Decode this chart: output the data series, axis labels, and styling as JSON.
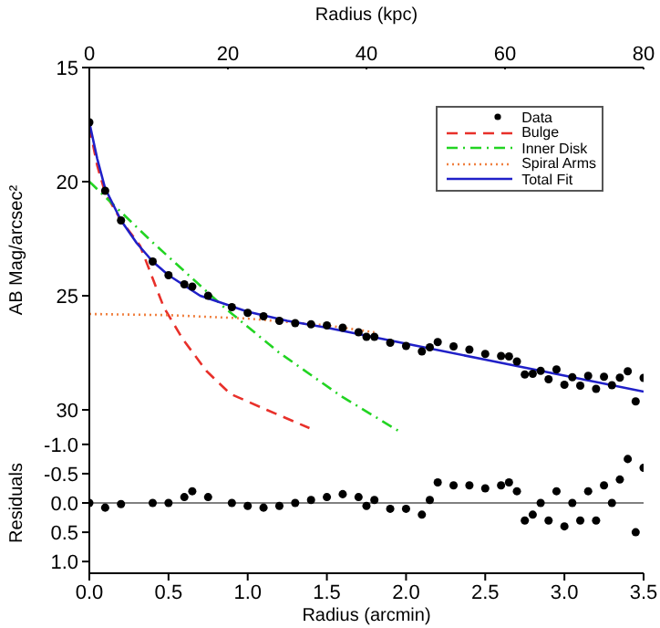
{
  "chart_data": [
    {
      "type": "line",
      "x2label": "Radius (kpc)",
      "ylabel": "AB Mag/arcsec²",
      "xlim": [
        0,
        3.5
      ],
      "xticks": [
        {
          "value": 0,
          "label": null
        },
        {
          "value": 0.5,
          "label": null
        },
        {
          "value": 1,
          "label": null
        },
        {
          "value": 1.5,
          "label": null
        },
        {
          "value": 2,
          "label": null
        },
        {
          "value": 2.5,
          "label": null
        },
        {
          "value": 3,
          "label": null
        },
        {
          "value": 3.5,
          "label": null
        }
      ],
      "x2lim": [
        0,
        80
      ],
      "x2ticks": [
        0,
        20,
        40,
        60,
        80
      ],
      "ylim": [
        31,
        15
      ],
      "yticks": [
        15,
        20,
        25,
        30
      ],
      "tick_labels": "y",
      "legend": "top right",
      "series": [
        {
          "name": "Data",
          "type": "scatter",
          "marker": "circle",
          "color": "#000000",
          "x": [
            0,
            0.1,
            0.2,
            0.4,
            0.5,
            0.6,
            0.65,
            0.75,
            0.9,
            1.0,
            1.1,
            1.2,
            1.3,
            1.4,
            1.5,
            1.6,
            1.7,
            1.75,
            1.8,
            1.9,
            2.0,
            2.1,
            2.15,
            2.2,
            2.3,
            2.4,
            2.5,
            2.6,
            2.65,
            2.7,
            2.75,
            2.8,
            2.85,
            2.9,
            2.95,
            3.0,
            3.05,
            3.1,
            3.15,
            3.2,
            3.25,
            3.3,
            3.35,
            3.4,
            3.45,
            3.5
          ],
          "values": [
            17.4,
            20.4,
            21.7,
            23.5,
            24.1,
            24.5,
            24.6,
            25.0,
            25.5,
            25.75,
            25.9,
            26.1,
            26.2,
            26.25,
            26.3,
            26.4,
            26.6,
            26.8,
            26.8,
            27.06,
            27.2,
            27.44,
            27.26,
            27.03,
            27.22,
            27.36,
            27.55,
            27.64,
            27.66,
            27.88,
            28.45,
            28.42,
            28.29,
            28.66,
            28.23,
            28.9,
            28.57,
            28.94,
            28.51,
            29.08,
            28.55,
            28.92,
            28.59,
            28.31,
            29.63,
            28.6
          ]
        },
        {
          "name": "Bulge",
          "marker": "none",
          "line_style": "dashed",
          "color": "#e8302a",
          "x": [
            0,
            0.05,
            0.1,
            0.2,
            0.32,
            0.47,
            0.59,
            0.74,
            0.89,
            1.12,
            1.39
          ],
          "values": [
            17.6,
            19.3,
            20.5,
            21.7,
            22.8,
            25.5,
            26.9,
            28.3,
            29.3,
            30.0,
            30.8
          ]
        },
        {
          "name": "Inner Disk",
          "marker": "none",
          "line_style": "dashdot",
          "color": "#22d422",
          "x": [
            0,
            0.39,
            0.85,
            1.2,
            1.59,
            1.97
          ],
          "values": [
            20.0,
            22.6,
            25.5,
            27.5,
            29.4,
            31.0
          ]
        },
        {
          "name": "Spiral Arms",
          "marker": "none",
          "line_style": "dotted",
          "color": "#f08040",
          "x": [
            0,
            0.5,
            1.0,
            1.5,
            1.8
          ],
          "values": [
            25.8,
            25.85,
            26.0,
            26.3,
            26.6
          ]
        },
        {
          "name": "Total Fit",
          "marker": "none",
          "line_style": "solid",
          "color": "#2020c8",
          "x": [
            0,
            0.05,
            0.1,
            0.2,
            0.3,
            0.4,
            0.5,
            0.7,
            1.0,
            1.25,
            1.5,
            2.0,
            2.5,
            3.0,
            3.5
          ],
          "values": [
            17.4,
            19.0,
            20.3,
            21.7,
            22.7,
            23.5,
            24.1,
            25.0,
            25.7,
            26.1,
            26.4,
            27.1,
            27.8,
            28.5,
            29.2
          ]
        }
      ]
    },
    {
      "type": "scatter",
      "xlabel": "Radius (arcmin)",
      "ylabel": "Residuals",
      "xlim": [
        0,
        3.5
      ],
      "xticks": [
        {
          "value": 0,
          "label": "0.0"
        },
        {
          "value": 0.5,
          "label": "0.5"
        },
        {
          "value": 1,
          "label": "1.0"
        },
        {
          "value": 1.5,
          "label": "1.5"
        },
        {
          "value": 2,
          "label": "2.0"
        },
        {
          "value": 2.5,
          "label": "2.5"
        },
        {
          "value": 3,
          "label": "3.0"
        },
        {
          "value": 3.5,
          "label": "3.5"
        }
      ],
      "ylim": [
        1.2,
        -1.2
      ],
      "yticks": [
        {
          "value": -1,
          "label": "-1.0"
        },
        {
          "value": -0.5,
          "label": "-0.5"
        },
        {
          "value": 0,
          "label": "0.0"
        },
        {
          "value": 0.5,
          "label": "0.5"
        },
        {
          "value": 1,
          "label": "1.0"
        }
      ],
      "marker": "circle",
      "ref_lines": [
        {
          "axis": "y",
          "value": 0,
          "color": "#808080"
        }
      ],
      "series": [
        {
          "color": "#000000",
          "x": [
            0,
            0.1,
            0.2,
            0.4,
            0.5,
            0.6,
            0.65,
            0.75,
            0.9,
            1.0,
            1.1,
            1.2,
            1.3,
            1.4,
            1.5,
            1.6,
            1.7,
            1.75,
            1.8,
            1.9,
            2.0,
            2.1,
            2.15,
            2.2,
            2.3,
            2.4,
            2.5,
            2.6,
            2.65,
            2.7,
            2.75,
            2.8,
            2.85,
            2.9,
            2.95,
            3.0,
            3.05,
            3.1,
            3.15,
            3.2,
            3.25,
            3.3,
            3.35,
            3.4,
            3.45,
            3.5
          ],
          "values": [
            0,
            0.08,
            0.02,
            0,
            0,
            -0.1,
            -0.2,
            -0.1,
            0,
            0.05,
            0.08,
            0.05,
            0,
            -0.05,
            -0.1,
            -0.15,
            -0.1,
            0.05,
            -0.05,
            0.1,
            0.1,
            0.2,
            -0.05,
            -0.35,
            -0.3,
            -0.3,
            -0.25,
            -0.3,
            -0.35,
            -0.2,
            0.3,
            0.2,
            0,
            0.3,
            -0.2,
            0.4,
            0,
            0.3,
            -0.2,
            0.3,
            -0.3,
            0,
            -0.4,
            -0.75,
            0.5,
            -0.6
          ]
        }
      ]
    }
  ]
}
